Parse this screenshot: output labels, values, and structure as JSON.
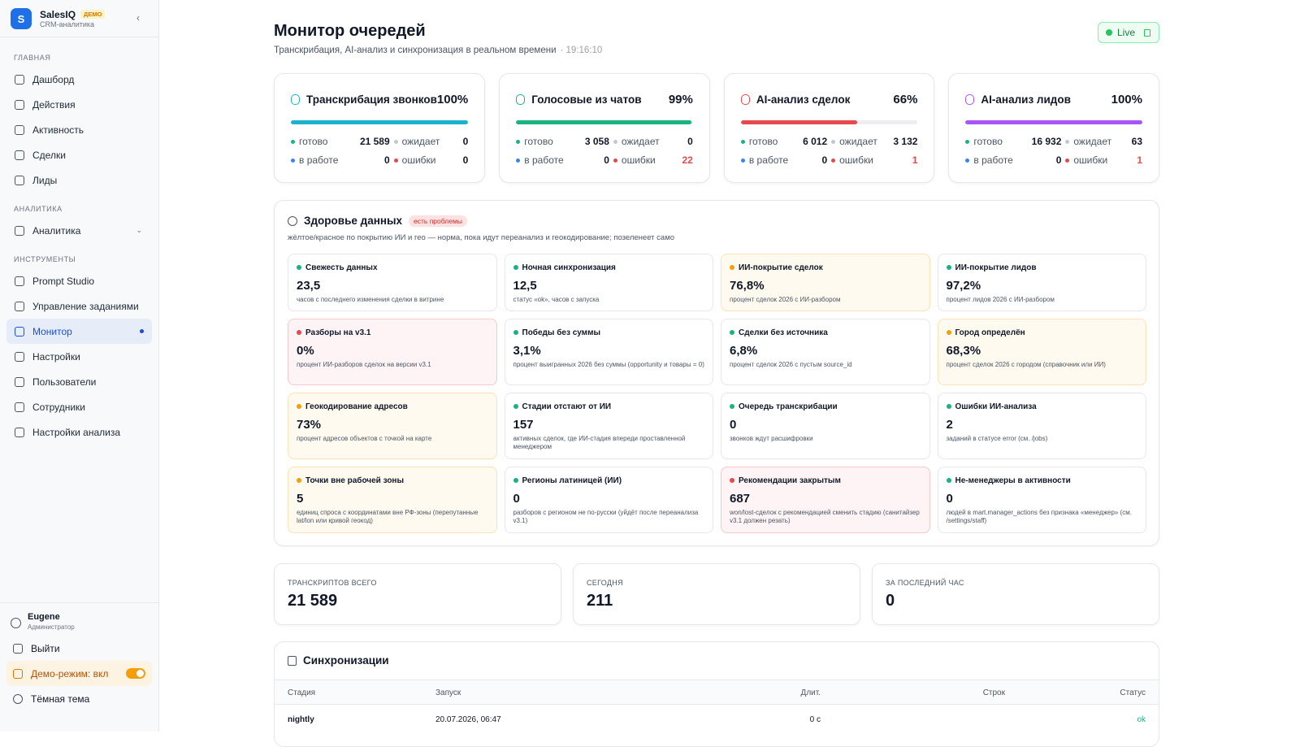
{
  "sidebar": {
    "brand": "SalesIQ",
    "badge": "ДЕМО",
    "subtitle": "CRM-аналитика",
    "sections": [
      {
        "title": "ГЛАВНАЯ",
        "items": [
          {
            "label": "Дашборд"
          },
          {
            "label": "Действия"
          },
          {
            "label": "Активность"
          },
          {
            "label": "Сделки"
          },
          {
            "label": "Лиды"
          }
        ]
      },
      {
        "title": "АНАЛИТИКА",
        "items": [
          {
            "label": "Аналитика",
            "expandable": true
          }
        ]
      },
      {
        "title": "ИНСТРУМЕНТЫ",
        "items": [
          {
            "label": "Prompt Studio"
          },
          {
            "label": "Управление заданиями"
          },
          {
            "label": "Монитор",
            "active": true
          },
          {
            "label": "Настройки"
          },
          {
            "label": "Пользователи"
          },
          {
            "label": "Сотрудники"
          },
          {
            "label": "Настройки анализа"
          }
        ]
      }
    ],
    "user": {
      "name": "Eugene",
      "role": "Администратор"
    },
    "logout": "Выйти",
    "demo_mode": "Демо-режим: вкл",
    "theme": "Тёмная тема"
  },
  "header": {
    "title": "Монитор очередей",
    "subtitle": "Транскрибация, AI-анализ и синхронизация в реальном времени",
    "time": "· 19:16:10",
    "live": "Live"
  },
  "stat_labels": {
    "done": "готово",
    "waiting": "ожидает",
    "working": "в работе",
    "errors": "ошибки"
  },
  "queues": [
    {
      "name": "Транскрибация звонков",
      "percent": 100,
      "percent_label": "100%",
      "color": "#1bb3cc",
      "done": "21 589",
      "waiting": "0",
      "working": "0",
      "errors": "0",
      "errors_color": "#111827"
    },
    {
      "name": "Голосовые из чатов",
      "percent": 99,
      "percent_label": "99%",
      "color": "#19b37f",
      "done": "3 058",
      "waiting": "0",
      "working": "0",
      "errors": "22",
      "errors_color": "#e5484d"
    },
    {
      "name": "AI-анализ сделок",
      "percent": 66,
      "percent_label": "66%",
      "color": "#e5484d",
      "done": "6 012",
      "waiting": "3 132",
      "working": "0",
      "errors": "1",
      "errors_color": "#e5484d"
    },
    {
      "name": "AI-анализ лидов",
      "percent": 100,
      "percent_label": "100%",
      "color": "#a855f7",
      "done": "16 932",
      "waiting": "63",
      "working": "0",
      "errors": "1",
      "errors_color": "#e5484d"
    }
  ],
  "health": {
    "title": "Здоровье данных",
    "badge": "есть проблемы",
    "description": "жёлтое/красное по покрытию ИИ и гео — норма, пока идут переанализ и геокодирование; позеленеет само",
    "tiles": [
      {
        "name": "Свежесть данных",
        "value": "23,5",
        "description": "часов с последнего изменения сделки в витрине",
        "color": "#19b37f",
        "bg": "#ffffff"
      },
      {
        "name": "Ночная синхронизация",
        "value": "12,5",
        "description": "статус «ok», часов с запуска",
        "color": "#19b37f",
        "bg": "#ffffff"
      },
      {
        "name": "ИИ-покрытие сделок",
        "value": "76,8%",
        "description": "процент сделок 2026 с ИИ-разбором",
        "color": "#f59e0b",
        "bg": "#fffaf0"
      },
      {
        "name": "ИИ-покрытие лидов",
        "value": "97,2%",
        "description": "процент лидов 2026 с ИИ-разбором",
        "color": "#19b37f",
        "bg": "#ffffff"
      },
      {
        "name": "Разборы на v3.1",
        "value": "0%",
        "description": "процент ИИ-разборов сделок на версии v3.1",
        "color": "#e5484d",
        "bg": "#fff4f5"
      },
      {
        "name": "Победы без суммы",
        "value": "3,1%",
        "description": "процент выигранных 2026 без суммы (opportunity и товары = 0)",
        "color": "#19b37f",
        "bg": "#ffffff"
      },
      {
        "name": "Сделки без источника",
        "value": "6,8%",
        "description": "процент сделок 2026 с пустым source_id",
        "color": "#19b37f",
        "bg": "#ffffff"
      },
      {
        "name": "Город определён",
        "value": "68,3%",
        "description": "процент сделок 2026 с городом (справочник или ИИ)",
        "color": "#f59e0b",
        "bg": "#fffaf0"
      },
      {
        "name": "Геокодирование адресов",
        "value": "73%",
        "description": "процент адресов объектов с точкой на карте",
        "color": "#f59e0b",
        "bg": "#fffaf0"
      },
      {
        "name": "Стадии отстают от ИИ",
        "value": "157",
        "description": "активных сделок, где ИИ-стадия впереди проставленной менеджером",
        "color": "#19b37f",
        "bg": "#ffffff"
      },
      {
        "name": "Очередь транскрибации",
        "value": "0",
        "description": "звонков ждут расшифровки",
        "color": "#19b37f",
        "bg": "#ffffff"
      },
      {
        "name": "Ошибки ИИ-анализа",
        "value": "2",
        "description": "заданий в статусе error (см. /jobs)",
        "color": "#19b37f",
        "bg": "#ffffff"
      },
      {
        "name": "Точки вне рабочей зоны",
        "value": "5",
        "description": "единиц спроса с координатами вне РФ-зоны (перепутанные lat/lon или кривой геокод)",
        "color": "#f59e0b",
        "bg": "#fffaf0"
      },
      {
        "name": "Регионы латиницей (ИИ)",
        "value": "0",
        "description": "разборов с регионом не по-русски (уйдёт после переанализа v3.1)",
        "color": "#19b37f",
        "bg": "#ffffff"
      },
      {
        "name": "Рекомендации закрытым",
        "value": "687",
        "description": "won/lost-сделок с рекомендацией сменить стадию (санитайзер v3.1 должен резать)",
        "color": "#e5484d",
        "bg": "#fff4f5"
      },
      {
        "name": "Не-менеджеры в активности",
        "value": "0",
        "description": "людей в mart.manager_actions без признака «менеджер» (см. /settings/staff)",
        "color": "#19b37f",
        "bg": "#ffffff"
      }
    ]
  },
  "totals": [
    {
      "label": "ТРАНСКРИПТОВ ВСЕГО",
      "value": "21 589"
    },
    {
      "label": "СЕГОДНЯ",
      "value": "211"
    },
    {
      "label": "ЗА ПОСЛЕДНИЙ ЧАС",
      "value": "0"
    }
  ],
  "sync": {
    "title": "Синхронизации",
    "columns": [
      "Стадия",
      "Запуск",
      "Длит.",
      "Строк",
      "Статус"
    ],
    "rows": [
      [
        "nightly",
        "20.07.2026, 06:47",
        "0 с",
        "",
        "ok"
      ]
    ]
  }
}
